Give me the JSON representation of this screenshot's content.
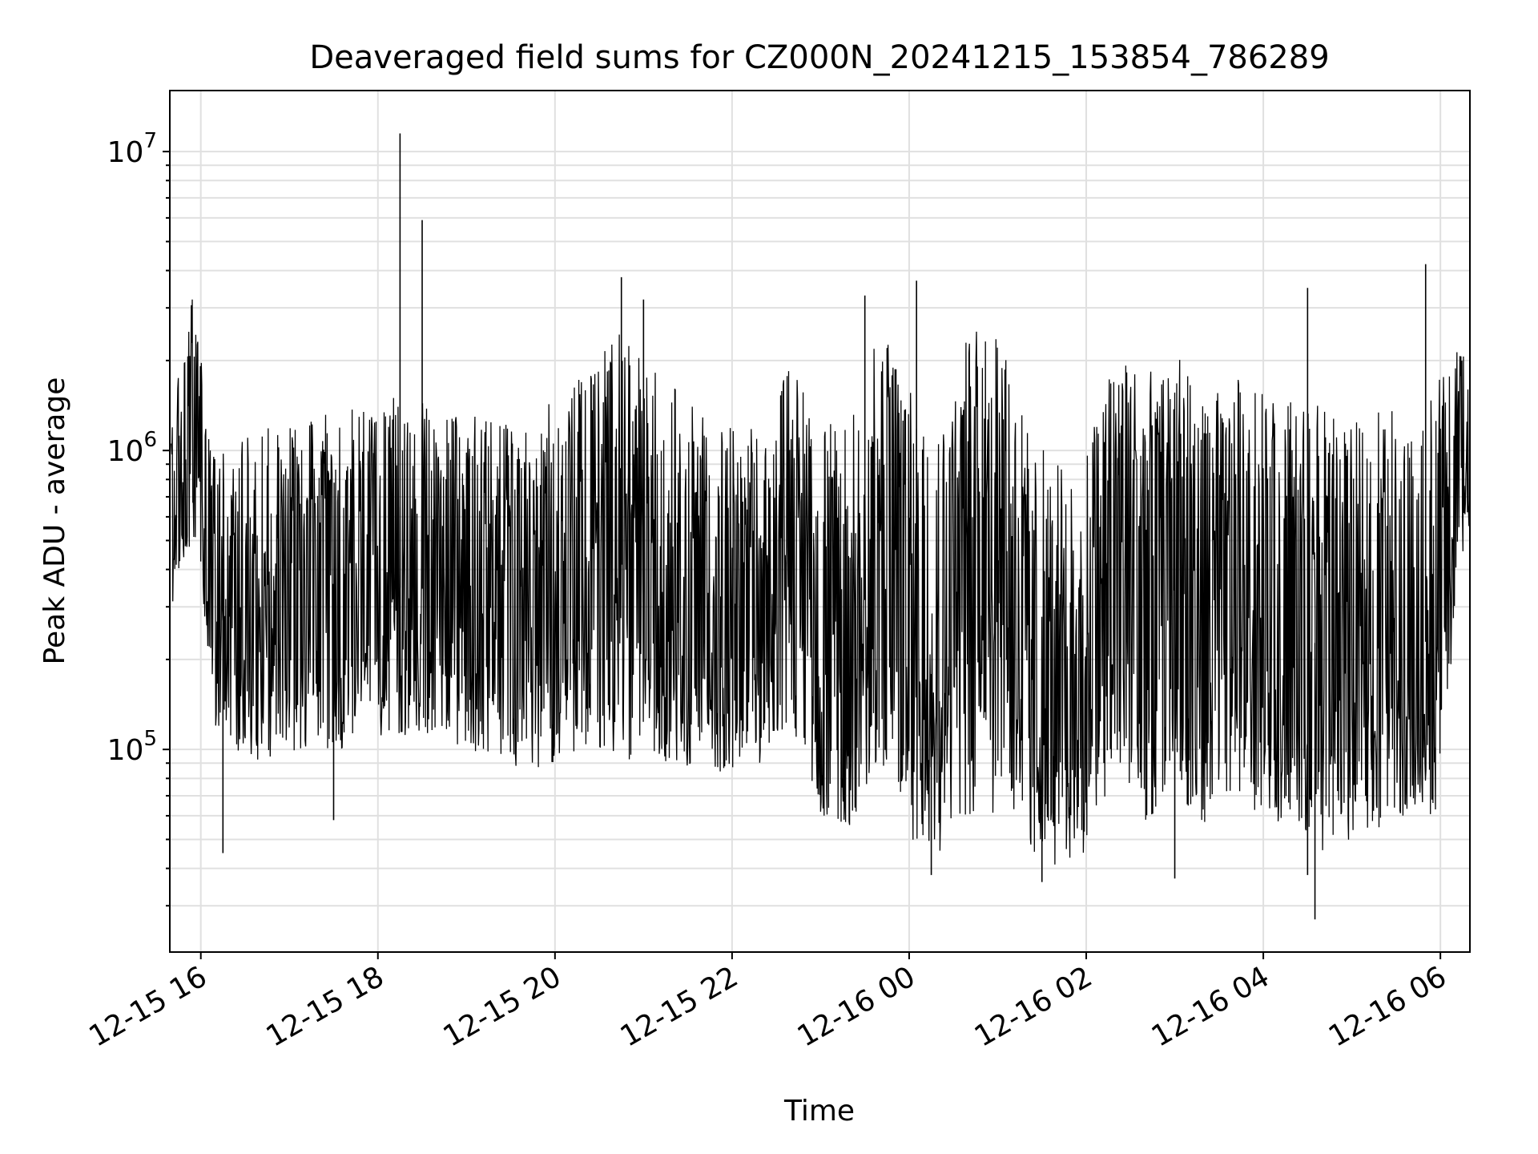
{
  "chart_data": {
    "type": "line",
    "title": "Deaveraged field sums for CZ000N_20241215_153854_786289",
    "xlabel": "Time",
    "ylabel": "Peak ADU - average",
    "y_scale": "log",
    "ylim": [
      21000,
      16000000
    ],
    "xlim": [
      "2024-12-15 15:39",
      "2024-12-16 06:20"
    ],
    "grid": true,
    "line_color": "#000000",
    "grid_color": "#e0e0e0",
    "x_ticks": [
      {
        "value": "2024-12-15 16:00",
        "label": "12-15 16"
      },
      {
        "value": "2024-12-15 18:00",
        "label": "12-15 18"
      },
      {
        "value": "2024-12-15 20:00",
        "label": "12-15 20"
      },
      {
        "value": "2024-12-15 22:00",
        "label": "12-15 22"
      },
      {
        "value": "2024-12-16 00:00",
        "label": "12-16 00"
      },
      {
        "value": "2024-12-16 02:00",
        "label": "12-16 02"
      },
      {
        "value": "2024-12-16 04:00",
        "label": "12-16 04"
      },
      {
        "value": "2024-12-16 06:00",
        "label": "12-16 06"
      }
    ],
    "y_ticks": [
      {
        "value": 100000,
        "base": "10",
        "exp": "5"
      },
      {
        "value": 1000000,
        "base": "10",
        "exp": "6"
      },
      {
        "value": 10000000,
        "base": "10",
        "exp": "7"
      }
    ],
    "series": [
      {
        "x": [
          "2024-12-15 15:40",
          "2024-12-15 15:45",
          "2024-12-15 15:50",
          "2024-12-15 15:55",
          "2024-12-15 16:00",
          "2024-12-15 16:05",
          "2024-12-15 16:10",
          "2024-12-15 16:20",
          "2024-12-15 16:30",
          "2024-12-15 16:40",
          "2024-12-15 16:50",
          "2024-12-15 17:00",
          "2024-12-15 17:20",
          "2024-12-15 17:40",
          "2024-12-15 18:00",
          "2024-12-15 18:20",
          "2024-12-15 18:40",
          "2024-12-15 19:00",
          "2024-12-15 19:20",
          "2024-12-15 19:40",
          "2024-12-15 20:00",
          "2024-12-15 20:20",
          "2024-12-15 20:40",
          "2024-12-15 21:00",
          "2024-12-15 21:20",
          "2024-12-15 21:40",
          "2024-12-15 22:00",
          "2024-12-15 22:20",
          "2024-12-15 22:40",
          "2024-12-15 23:00",
          "2024-12-15 23:20",
          "2024-12-15 23:40",
          "2024-12-16 00:00",
          "2024-12-16 00:20",
          "2024-12-16 00:40",
          "2024-12-16 01:00",
          "2024-12-16 01:20",
          "2024-12-16 01:40",
          "2024-12-16 02:00",
          "2024-12-16 02:20",
          "2024-12-16 02:40",
          "2024-12-16 03:00",
          "2024-12-16 03:20",
          "2024-12-16 03:40",
          "2024-12-16 04:00",
          "2024-12-16 04:20",
          "2024-12-16 04:40",
          "2024-12-16 05:00",
          "2024-12-16 05:20",
          "2024-12-16 05:40",
          "2024-12-16 06:00",
          "2024-12-16 06:10",
          "2024-12-16 06:20"
        ],
        "y": [
          600000,
          850000,
          1100000,
          1400000,
          1000000,
          500000,
          380000,
          320000,
          300000,
          290000,
          300000,
          310000,
          320000,
          330000,
          340000,
          350000,
          340000,
          320000,
          300000,
          290000,
          300000,
          330000,
          420000,
          400000,
          320000,
          260000,
          250000,
          240000,
          700000,
          220000,
          200000,
          500000,
          250000,
          160000,
          500000,
          700000,
          150000,
          100000,
          120000,
          650000,
          300000,
          500000,
          200000,
          350000,
          250000,
          250000,
          220000,
          200000,
          230000,
          210000,
          250000,
          850000,
          1000000
        ],
        "low": [
          300000,
          350000,
          450000,
          500000,
          400000,
          200000,
          110000,
          100000,
          95000,
          90000,
          90000,
          95000,
          100000,
          100000,
          110000,
          110000,
          110000,
          100000,
          95000,
          85000,
          90000,
          100000,
          90000,
          95000,
          90000,
          80000,
          85000,
          90000,
          120000,
          60000,
          55000,
          90000,
          50000,
          45000,
          55000,
          60000,
          45000,
          40000,
          45000,
          90000,
          55000,
          70000,
          55000,
          65000,
          55000,
          60000,
          45000,
          50000,
          55000,
          60000,
          60000,
          300000,
          500000
        ],
        "high": [
          1500000,
          1800000,
          2400000,
          3500000,
          2200000,
          1200000,
          1000000,
          1000000,
          1100000,
          1200000,
          1200000,
          1300000,
          1300000,
          1400000,
          1500000,
          1500000,
          1400000,
          1300000,
          1300000,
          1200000,
          1500000,
          1800000,
          2600000,
          2000000,
          1700000,
          1300000,
          1200000,
          1200000,
          2000000,
          1200000,
          1300000,
          2500000,
          2000000,
          1300000,
          2500000,
          2600000,
          1200000,
          900000,
          1000000,
          2500000,
          1800000,
          2200000,
          1400000,
          1800000,
          1600000,
          1500000,
          1400000,
          1200000,
          1500000,
          1400000,
          1800000,
          2200000,
          2300000
        ],
        "spikes": [
          {
            "x": "2024-12-15 18:15",
            "y": 11500000
          },
          {
            "x": "2024-12-15 18:30",
            "y": 5900000
          },
          {
            "x": "2024-12-15 20:45",
            "y": 3800000
          },
          {
            "x": "2024-12-15 21:00",
            "y": 3200000
          },
          {
            "x": "2024-12-15 23:30",
            "y": 3300000
          },
          {
            "x": "2024-12-16 00:05",
            "y": 3700000
          },
          {
            "x": "2024-12-16 04:30",
            "y": 3500000
          },
          {
            "x": "2024-12-16 05:50",
            "y": 4200000
          },
          {
            "x": "2024-12-15 16:15",
            "y": 45000
          },
          {
            "x": "2024-12-15 17:30",
            "y": 58000
          },
          {
            "x": "2024-12-16 00:15",
            "y": 38000
          },
          {
            "x": "2024-12-16 01:30",
            "y": 36000
          },
          {
            "x": "2024-12-16 04:35",
            "y": 27000
          },
          {
            "x": "2024-12-16 03:00",
            "y": 37000
          },
          {
            "x": "2024-12-16 04:30",
            "y": 38000
          }
        ]
      }
    ]
  }
}
